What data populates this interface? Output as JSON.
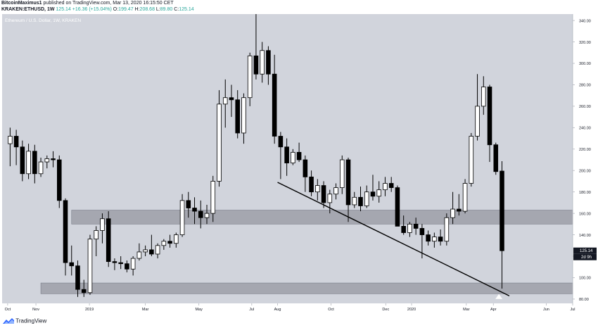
{
  "header": {
    "author": "BitcoinMaximus1",
    "published_text": "published on TradingView.com, Mar 13, 2020 16:15:50 CET",
    "symbol": "KRAKEN:ETHUSD, 1W",
    "last": "125.14",
    "change": "+16.36 (+15.04%)",
    "o_label": "O:",
    "o_value": "199.47",
    "h_label": "H:",
    "h_value": "208.68",
    "l_label": "L:",
    "l_value": "89.80",
    "c_label": "C:",
    "c_value": "125.14"
  },
  "footer": {
    "brand": "TradingView"
  },
  "chart_data": {
    "type": "candlestick",
    "title": "Ethereum / U.S. Dollar, 1W, KRAKEN",
    "yaxis": {
      "side": "right",
      "ylim": [
        76,
        346
      ],
      "ticks": [
        80,
        100,
        120,
        140,
        160,
        180,
        200,
        220,
        240,
        260,
        280,
        300,
        320,
        340
      ],
      "labels": [
        "80.00",
        "100.00",
        "120.00",
        "140.00",
        "160.00",
        "180.00",
        "200.00",
        "220.00",
        "240.00",
        "260.00",
        "280.00",
        "300.00",
        "320.00",
        "340.00"
      ]
    },
    "xaxis": {
      "index_range": [
        -1.3,
        91.5
      ],
      "labels": [
        {
          "label": "Oct",
          "index": -0.4
        },
        {
          "label": "Nov",
          "index": 4.2
        },
        {
          "label": "2019",
          "index": 12.9
        },
        {
          "label": "Mar",
          "index": 22.0
        },
        {
          "label": "May",
          "index": 30.7
        },
        {
          "label": "Jul",
          "index": 39.3
        },
        {
          "label": "Aug",
          "index": 43.5
        },
        {
          "label": "Oct",
          "index": 52.2
        },
        {
          "label": "Dec",
          "index": 61.1
        },
        {
          "label": "2020",
          "index": 65.3
        },
        {
          "label": "Mar",
          "index": 74.2
        },
        {
          "label": "Apr",
          "index": 78.6
        },
        {
          "label": "Jun",
          "index": 87.2
        },
        {
          "label": "Jul",
          "index": 91.5
        }
      ]
    },
    "grid": false,
    "colors": {
      "background": "#d1d4dc",
      "up_fill": "#ffffff",
      "down_fill": "#000000",
      "outline": "#000000",
      "zone_fill": "#9598a1",
      "trendline": "#000000",
      "last_price_bg": "#131722"
    },
    "candles": [
      {
        "o": 225,
        "h": 240,
        "l": 204,
        "c": 232
      },
      {
        "o": 232,
        "h": 238,
        "l": 205,
        "c": 222
      },
      {
        "o": 222,
        "h": 228,
        "l": 190,
        "c": 197
      },
      {
        "o": 197,
        "h": 225,
        "l": 192,
        "c": 218
      },
      {
        "o": 218,
        "h": 224,
        "l": 188,
        "c": 197
      },
      {
        "o": 197,
        "h": 212,
        "l": 194,
        "c": 208
      },
      {
        "o": 208,
        "h": 214,
        "l": 202,
        "c": 211
      },
      {
        "o": 211,
        "h": 218,
        "l": 203,
        "c": 210
      },
      {
        "o": 210,
        "h": 214,
        "l": 165,
        "c": 172
      },
      {
        "o": 172,
        "h": 174,
        "l": 102,
        "c": 114
      },
      {
        "o": 114,
        "h": 130,
        "l": 102,
        "c": 111
      },
      {
        "o": 111,
        "h": 116,
        "l": 82,
        "c": 89
      },
      {
        "o": 89,
        "h": 98,
        "l": 82,
        "c": 86
      },
      {
        "o": 86,
        "h": 140,
        "l": 84,
        "c": 136
      },
      {
        "o": 136,
        "h": 148,
        "l": 120,
        "c": 144
      },
      {
        "o": 144,
        "h": 160,
        "l": 132,
        "c": 155
      },
      {
        "o": 155,
        "h": 162,
        "l": 110,
        "c": 115
      },
      {
        "o": 115,
        "h": 118,
        "l": 107,
        "c": 114
      },
      {
        "o": 114,
        "h": 120,
        "l": 108,
        "c": 113
      },
      {
        "o": 113,
        "h": 116,
        "l": 105,
        "c": 108
      },
      {
        "o": 108,
        "h": 120,
        "l": 102,
        "c": 118
      },
      {
        "o": 118,
        "h": 132,
        "l": 116,
        "c": 124
      },
      {
        "o": 124,
        "h": 130,
        "l": 120,
        "c": 126
      },
      {
        "o": 126,
        "h": 140,
        "l": 120,
        "c": 122
      },
      {
        "o": 122,
        "h": 132,
        "l": 118,
        "c": 130
      },
      {
        "o": 130,
        "h": 136,
        "l": 126,
        "c": 134
      },
      {
        "o": 134,
        "h": 140,
        "l": 128,
        "c": 132
      },
      {
        "o": 132,
        "h": 142,
        "l": 128,
        "c": 140
      },
      {
        "o": 140,
        "h": 178,
        "l": 138,
        "c": 172
      },
      {
        "o": 172,
        "h": 180,
        "l": 156,
        "c": 165
      },
      {
        "o": 165,
        "h": 175,
        "l": 150,
        "c": 162
      },
      {
        "o": 162,
        "h": 172,
        "l": 146,
        "c": 156
      },
      {
        "o": 156,
        "h": 168,
        "l": 150,
        "c": 160
      },
      {
        "o": 160,
        "h": 195,
        "l": 152,
        "c": 190
      },
      {
        "o": 190,
        "h": 275,
        "l": 185,
        "c": 262
      },
      {
        "o": 262,
        "h": 285,
        "l": 240,
        "c": 268
      },
      {
        "o": 268,
        "h": 280,
        "l": 250,
        "c": 266
      },
      {
        "o": 266,
        "h": 275,
        "l": 230,
        "c": 235
      },
      {
        "o": 235,
        "h": 272,
        "l": 225,
        "c": 268
      },
      {
        "o": 268,
        "h": 310,
        "l": 260,
        "c": 307
      },
      {
        "o": 307,
        "h": 365,
        "l": 285,
        "c": 290
      },
      {
        "o": 290,
        "h": 320,
        "l": 282,
        "c": 312
      },
      {
        "o": 312,
        "h": 316,
        "l": 280,
        "c": 290
      },
      {
        "o": 290,
        "h": 308,
        "l": 225,
        "c": 232
      },
      {
        "o": 232,
        "h": 236,
        "l": 192,
        "c": 222
      },
      {
        "o": 222,
        "h": 230,
        "l": 195,
        "c": 207
      },
      {
        "o": 207,
        "h": 220,
        "l": 205,
        "c": 217
      },
      {
        "o": 217,
        "h": 226,
        "l": 208,
        "c": 210
      },
      {
        "o": 210,
        "h": 214,
        "l": 180,
        "c": 194
      },
      {
        "o": 194,
        "h": 200,
        "l": 176,
        "c": 180
      },
      {
        "o": 180,
        "h": 192,
        "l": 172,
        "c": 186
      },
      {
        "o": 186,
        "h": 190,
        "l": 165,
        "c": 170
      },
      {
        "o": 170,
        "h": 182,
        "l": 160,
        "c": 178
      },
      {
        "o": 178,
        "h": 188,
        "l": 173,
        "c": 184
      },
      {
        "o": 184,
        "h": 214,
        "l": 178,
        "c": 210
      },
      {
        "o": 210,
        "h": 212,
        "l": 152,
        "c": 168
      },
      {
        "o": 168,
        "h": 180,
        "l": 165,
        "c": 175
      },
      {
        "o": 175,
        "h": 185,
        "l": 162,
        "c": 167
      },
      {
        "o": 167,
        "h": 186,
        "l": 165,
        "c": 180
      },
      {
        "o": 180,
        "h": 196,
        "l": 172,
        "c": 176
      },
      {
        "o": 176,
        "h": 190,
        "l": 170,
        "c": 182
      },
      {
        "o": 182,
        "h": 194,
        "l": 176,
        "c": 188
      },
      {
        "o": 188,
        "h": 194,
        "l": 180,
        "c": 184
      },
      {
        "o": 184,
        "h": 186,
        "l": 150,
        "c": 148
      },
      {
        "o": 148,
        "h": 158,
        "l": 140,
        "c": 142
      },
      {
        "o": 142,
        "h": 152,
        "l": 138,
        "c": 150
      },
      {
        "o": 150,
        "h": 156,
        "l": 140,
        "c": 146
      },
      {
        "o": 146,
        "h": 150,
        "l": 118,
        "c": 140
      },
      {
        "o": 140,
        "h": 144,
        "l": 130,
        "c": 134
      },
      {
        "o": 134,
        "h": 142,
        "l": 128,
        "c": 138
      },
      {
        "o": 138,
        "h": 145,
        "l": 130,
        "c": 134
      },
      {
        "o": 134,
        "h": 160,
        "l": 130,
        "c": 156
      },
      {
        "o": 156,
        "h": 180,
        "l": 150,
        "c": 164
      },
      {
        "o": 164,
        "h": 178,
        "l": 158,
        "c": 162
      },
      {
        "o": 162,
        "h": 192,
        "l": 160,
        "c": 188
      },
      {
        "o": 188,
        "h": 235,
        "l": 185,
        "c": 232
      },
      {
        "o": 232,
        "h": 290,
        "l": 228,
        "c": 260
      },
      {
        "o": 260,
        "h": 288,
        "l": 252,
        "c": 278
      },
      {
        "o": 278,
        "h": 280,
        "l": 208,
        "c": 224
      },
      {
        "o": 224,
        "h": 226,
        "l": 196,
        "c": 199
      },
      {
        "o": 199.47,
        "h": 208.68,
        "l": 89.8,
        "c": 125.14
      }
    ],
    "zones": [
      {
        "name": "upper-support-zone",
        "y_from": 150,
        "y_to": 163,
        "x_from": 10.0,
        "x_to": 91.5
      },
      {
        "name": "lower-support-zone",
        "y_from": 85,
        "y_to": 95,
        "x_from": 5.0,
        "x_to": 91.5
      }
    ],
    "trendline": {
      "x1": 43.5,
      "y1": 189,
      "x2": 81.2,
      "y2": 83
    },
    "marker": {
      "type": "triangle-up",
      "x": 79.5,
      "y": 86
    },
    "last_price_label": "125.14",
    "countdown_label": "2d 9h"
  }
}
